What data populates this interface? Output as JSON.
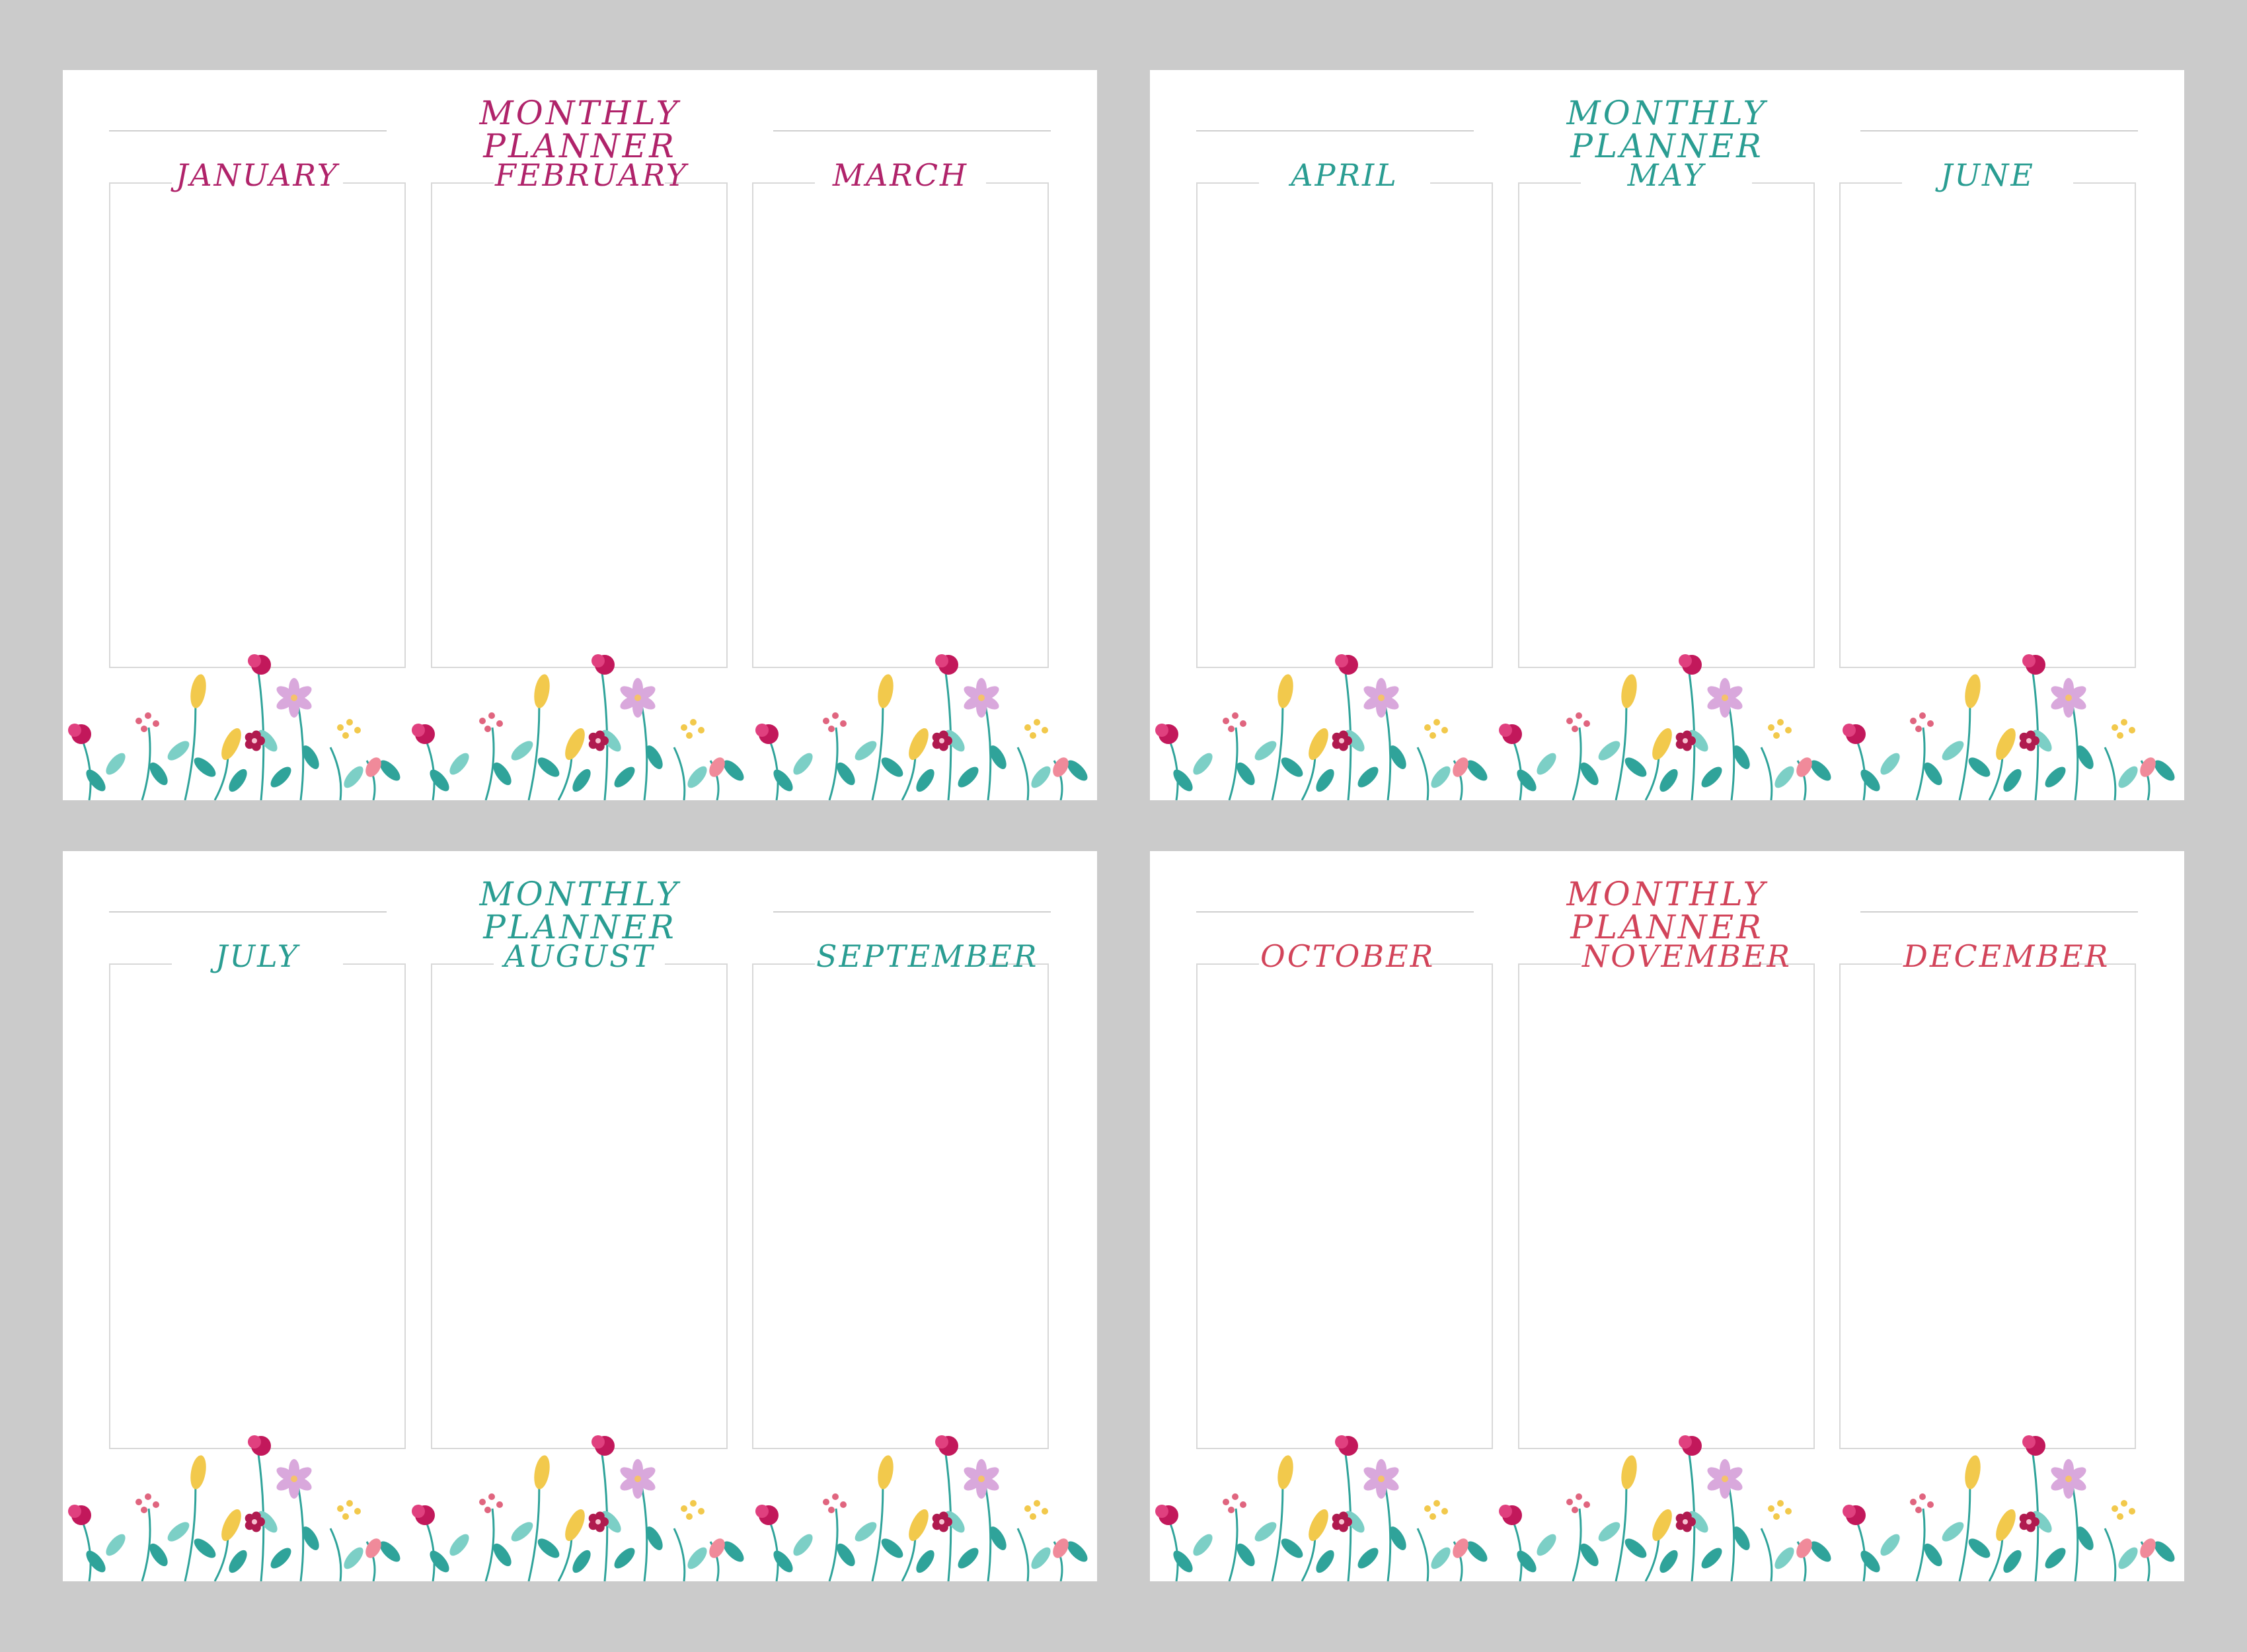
{
  "sheets": [
    {
      "title": "MONTHLY PLANNER",
      "color": "#b0236a",
      "months": [
        "JANUARY",
        "FEBRUARY",
        "MARCH"
      ]
    },
    {
      "title": "MONTHLY PLANNER",
      "color": "#2a9d92",
      "months": [
        "APRIL",
        "MAY",
        "JUNE"
      ]
    },
    {
      "title": "MONTHLY PLANNER",
      "color": "#2a9d92",
      "months": [
        "JULY",
        "AUGUST",
        "SEPTEMBER"
      ]
    },
    {
      "title": "MONTHLY PLANNER",
      "color": "#d2445a",
      "months": [
        "OCTOBER",
        "NOVEMBER",
        "DECEMBER"
      ]
    }
  ],
  "colors": {
    "background": "#cbcbcb",
    "leaf_teal": "#2fa39a",
    "leaf_light": "#7ccfc6",
    "flower_magenta": "#c2185b",
    "flower_yellow": "#f2c94c",
    "flower_lilac": "#d9a8dc",
    "flower_pink": "#f08a9a"
  }
}
